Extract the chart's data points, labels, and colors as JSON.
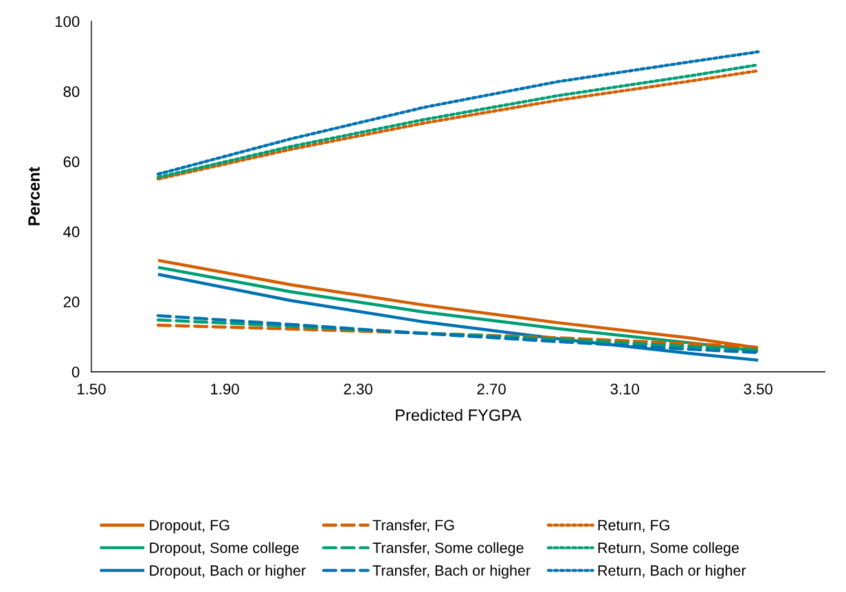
{
  "chart_data": {
    "type": "line",
    "xlabel": "Predicted FYGPA",
    "ylabel": "Percent",
    "xlim": [
      1.5,
      3.7
    ],
    "xticks": [
      {
        "value": 1.5,
        "label": "1.50"
      },
      {
        "value": 1.9,
        "label": "1.90"
      },
      {
        "value": 2.3,
        "label": "2.30"
      },
      {
        "value": 2.7,
        "label": "2.70"
      },
      {
        "value": 3.1,
        "label": "3.10"
      },
      {
        "value": 3.5,
        "label": "3.50"
      }
    ],
    "ylim": [
      0,
      100
    ],
    "yticks": [
      0,
      20,
      40,
      60,
      80,
      100
    ],
    "grid": false,
    "legend": "bottom",
    "marker": "none",
    "x": [
      1.7,
      2.1,
      2.5,
      2.9,
      3.3,
      3.5
    ],
    "series": [
      {
        "name": "Dropout, FG",
        "color": "#d55e00",
        "line_style": "solid",
        "values": [
          31.8,
          24.8,
          19.0,
          14.0,
          9.6,
          6.8
        ]
      },
      {
        "name": "Dropout, Some college",
        "color": "#009e73",
        "line_style": "solid",
        "values": [
          29.8,
          22.8,
          17.0,
          12.3,
          8.2,
          5.9
        ]
      },
      {
        "name": "Dropout, Bach or higher",
        "color": "#0072b2",
        "line_style": "solid",
        "values": [
          27.8,
          20.3,
          14.2,
          9.4,
          5.2,
          3.3
        ]
      },
      {
        "name": "Transfer, FG",
        "color": "#d55e00",
        "line_style": "dashed",
        "values": [
          13.3,
          12.2,
          11.0,
          9.7,
          8.0,
          7.0
        ]
      },
      {
        "name": "Transfer, Some college",
        "color": "#009e73",
        "line_style": "dashed",
        "values": [
          14.8,
          13.0,
          11.0,
          9.3,
          7.2,
          6.2
        ]
      },
      {
        "name": "Transfer, Bach or higher",
        "color": "#0072b2",
        "line_style": "dashed",
        "values": [
          16.0,
          13.5,
          10.9,
          8.6,
          6.4,
          5.5
        ]
      },
      {
        "name": "Return, FG",
        "color": "#d55e00",
        "line_style": "dotted",
        "values": [
          55.0,
          63.5,
          71.0,
          77.5,
          83.0,
          85.9
        ]
      },
      {
        "name": "Return, Some college",
        "color": "#009e73",
        "line_style": "dotted",
        "values": [
          55.5,
          64.3,
          72.0,
          78.8,
          84.5,
          87.6
        ]
      },
      {
        "name": "Return, Bach or higher",
        "color": "#0072b2",
        "line_style": "dotted",
        "values": [
          56.4,
          66.5,
          75.5,
          82.8,
          88.5,
          91.3
        ]
      }
    ]
  }
}
